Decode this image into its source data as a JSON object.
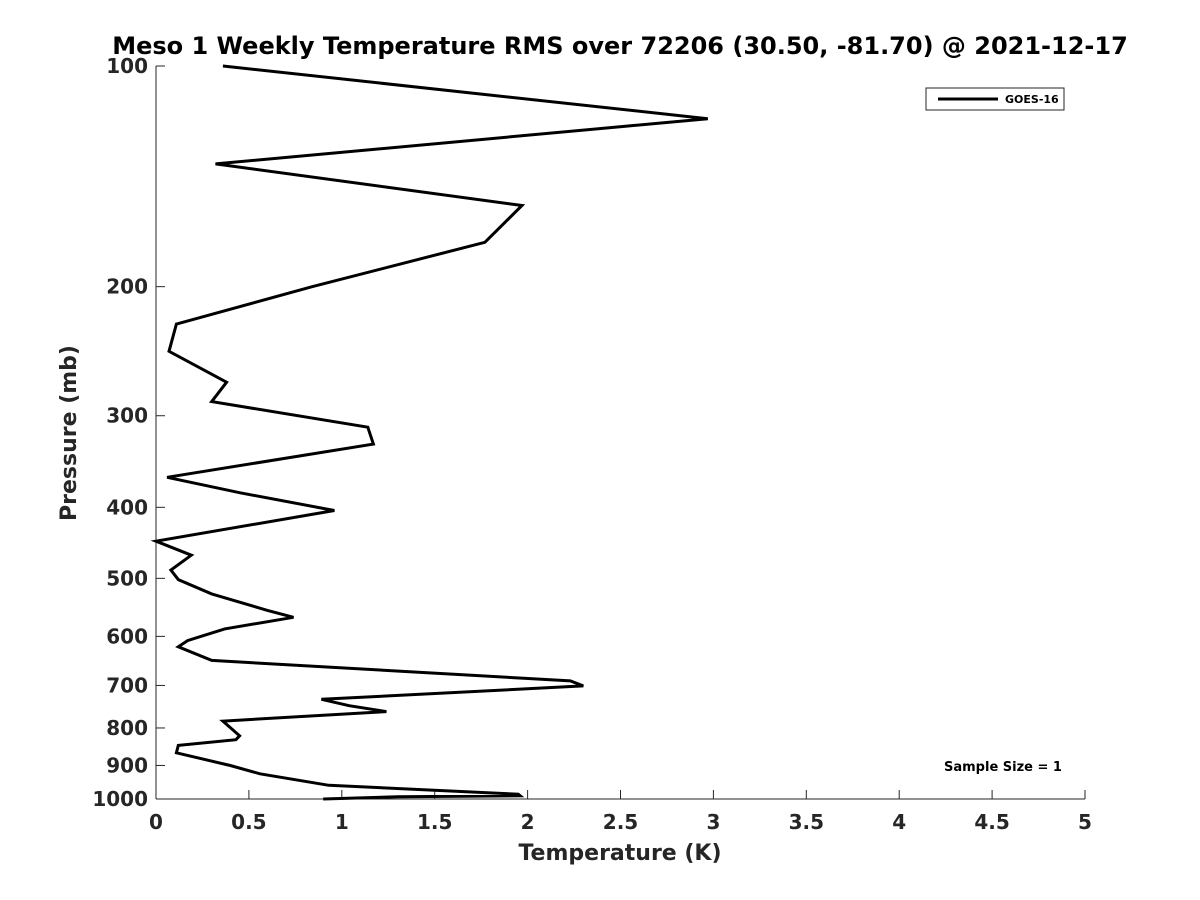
{
  "chart_data": {
    "type": "line",
    "title": "Meso 1 Weekly Temperature RMS over 72206 (30.50, -81.70) @ 2021-12-17",
    "xlabel": "Temperature (K)",
    "ylabel": "Pressure (mb)",
    "xlim": [
      0,
      5
    ],
    "ylim": [
      1000,
      100
    ],
    "y_scale": "log",
    "x_ticks": [
      "0",
      "0.5",
      "1",
      "1.5",
      "2",
      "2.5",
      "3",
      "3.5",
      "4",
      "4.5",
      "5"
    ],
    "y_ticks": [
      "100",
      "200",
      "300",
      "400",
      "500",
      "600",
      "700",
      "800",
      "900",
      "1000"
    ],
    "grid": false,
    "legend_position": "top-right",
    "annotation": "Sample Size = 1",
    "series": [
      {
        "name": "GOES-16",
        "color": "#000000",
        "points": [
          [
            0.36,
            100
          ],
          [
            2.97,
            118
          ],
          [
            0.32,
            136
          ],
          [
            1.97,
            155
          ],
          [
            1.77,
            174
          ],
          [
            0.84,
            200
          ],
          [
            0.11,
            225
          ],
          [
            0.07,
            245
          ],
          [
            0.38,
            270
          ],
          [
            0.3,
            287
          ],
          [
            1.14,
            311
          ],
          [
            1.17,
            328
          ],
          [
            0.06,
            364
          ],
          [
            0.45,
            382
          ],
          [
            0.96,
            404
          ],
          [
            0.0,
            445
          ],
          [
            0.19,
            465
          ],
          [
            0.08,
            487
          ],
          [
            0.12,
            502
          ],
          [
            0.3,
            525
          ],
          [
            0.6,
            553
          ],
          [
            0.74,
            565
          ],
          [
            0.37,
            586
          ],
          [
            0.17,
            608
          ],
          [
            0.12,
            620
          ],
          [
            0.3,
            647
          ],
          [
            2.23,
            690
          ],
          [
            2.3,
            701
          ],
          [
            0.89,
            731
          ],
          [
            1.04,
            746
          ],
          [
            1.24,
            760
          ],
          [
            0.36,
            783
          ],
          [
            0.45,
            820
          ],
          [
            0.43,
            830
          ],
          [
            0.12,
            845
          ],
          [
            0.11,
            865
          ],
          [
            0.4,
            900
          ],
          [
            0.56,
            924
          ],
          [
            0.93,
            958
          ],
          [
            1.95,
            985
          ],
          [
            1.96,
            990
          ],
          [
            1.3,
            993
          ],
          [
            0.9,
            1000
          ]
        ]
      }
    ]
  }
}
